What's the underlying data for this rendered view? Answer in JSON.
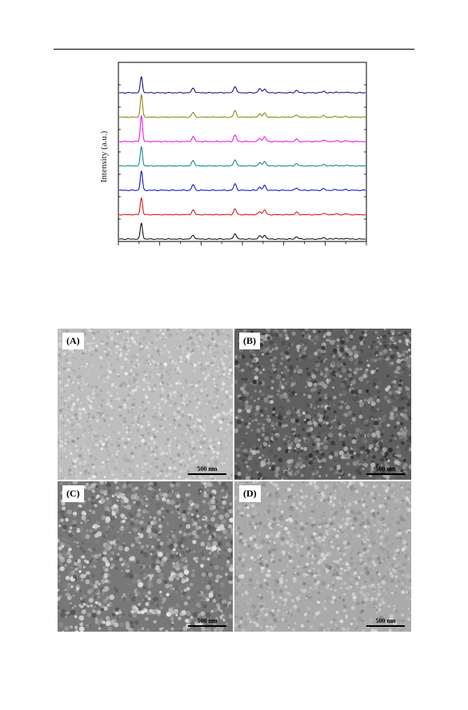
{
  "chart_data": {
    "type": "line",
    "title": "",
    "xlabel": "",
    "ylabel": "Intensity (a.u.)",
    "grid": false,
    "legend": "none",
    "peak_positions": [
      0.09,
      0.3,
      0.47,
      0.57,
      0.59,
      0.72,
      0.83,
      0.88,
      0.92
    ],
    "series": [
      {
        "color": "#000000",
        "offset": 0,
        "peak_heights": [
          20,
          5,
          7,
          4,
          5,
          3,
          2,
          1,
          1
        ]
      },
      {
        "color": "#e00000",
        "offset": 1,
        "peak_heights": [
          21,
          6,
          7,
          4,
          6,
          3,
          2,
          1,
          1
        ]
      },
      {
        "color": "#0000d0",
        "offset": 2,
        "peak_heights": [
          24,
          7,
          8,
          4,
          6,
          3,
          2,
          1,
          1
        ]
      },
      {
        "color": "#008080",
        "offset": 3,
        "peak_heights": [
          24,
          7,
          8,
          4,
          6,
          3,
          2,
          1,
          1
        ]
      },
      {
        "color": "#ee00ee",
        "offset": 4,
        "peak_heights": [
          32,
          6,
          8,
          4,
          6,
          3,
          2,
          1,
          1
        ]
      },
      {
        "color": "#808000",
        "offset": 5,
        "peak_heights": [
          28,
          6,
          8,
          4,
          5,
          3,
          2,
          1,
          1
        ]
      },
      {
        "color": "#000080",
        "offset": 6,
        "peak_heights": [
          20,
          6,
          8,
          5,
          5,
          3,
          2,
          1,
          1
        ]
      }
    ]
  },
  "sem": {
    "panels": [
      {
        "label": "(A)",
        "scale": "500 nm",
        "tone": "light"
      },
      {
        "label": "(B)",
        "scale": "500 nm",
        "tone": "dark"
      },
      {
        "label": "(C)",
        "scale": "500 nm",
        "tone": "medium"
      },
      {
        "label": "(D)",
        "scale": "500 nm",
        "tone": "pale"
      }
    ]
  }
}
